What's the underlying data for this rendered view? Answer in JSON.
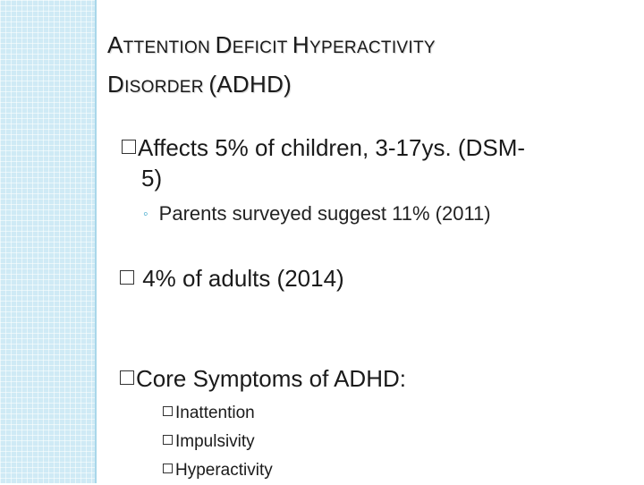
{
  "slide": {
    "title_line1_parts": [
      "A",
      "TTENTION ",
      "D",
      "EFICIT ",
      "H",
      "YPERACTIVITY"
    ],
    "title_line2_parts": [
      "D",
      "ISORDER ",
      "(ADHD)"
    ],
    "bullets": [
      {
        "text_line1": "Affects 5% of children, 3-17ys. (DSM-",
        "text_line2": "5)"
      },
      {
        "text": " 4% of adults (2014)"
      },
      {
        "text": "Core Symptoms of ADHD:"
      }
    ],
    "sub_bullet": "Parents surveyed suggest 11% (2011)",
    "symptoms": [
      "Inattention",
      "Impulsivity",
      "Hyperactivity"
    ]
  },
  "colors": {
    "left_band": "#cfeaf5",
    "accent": "#3aa6c9"
  },
  "icons": {
    "bullet": "checkbox-square-icon",
    "sub_bullet": "ring-icon"
  }
}
